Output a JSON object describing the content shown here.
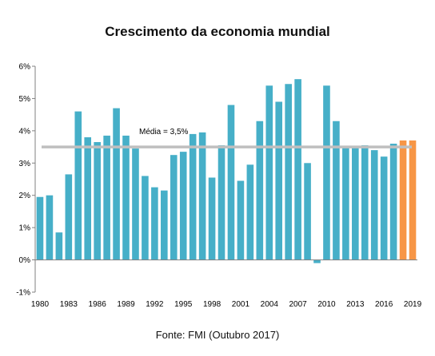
{
  "chart_data": {
    "type": "bar",
    "title": "Crescimento da economia mundial",
    "source": "Fonte: FMI (Outubro 2017)",
    "xlabel": "",
    "ylabel": "",
    "ylim": [
      -1,
      6
    ],
    "y_ticks": [
      "-1%",
      "0%",
      "1%",
      "2%",
      "3%",
      "4%",
      "5%",
      "6%"
    ],
    "x_tick_labels": [
      "1980",
      "1983",
      "1986",
      "1989",
      "1992",
      "1995",
      "1998",
      "2001",
      "2004",
      "2007",
      "2010",
      "2013",
      "2016",
      "2019"
    ],
    "categories": [
      "1980",
      "1981",
      "1982",
      "1983",
      "1984",
      "1985",
      "1986",
      "1987",
      "1988",
      "1989",
      "1990",
      "1991",
      "1992",
      "1993",
      "1994",
      "1995",
      "1996",
      "1997",
      "1998",
      "1999",
      "2000",
      "2001",
      "2002",
      "2003",
      "2004",
      "2005",
      "2006",
      "2007",
      "2008",
      "2009",
      "2010",
      "2011",
      "2012",
      "2013",
      "2014",
      "2015",
      "2016",
      "2017",
      "2018",
      "2019"
    ],
    "values": [
      1.95,
      2.0,
      0.85,
      2.65,
      4.6,
      3.8,
      3.65,
      3.85,
      4.7,
      3.85,
      3.45,
      2.6,
      2.25,
      2.15,
      3.25,
      3.35,
      3.9,
      3.95,
      2.55,
      3.55,
      4.8,
      2.45,
      2.95,
      4.3,
      5.4,
      4.9,
      5.45,
      5.6,
      3.0,
      -0.1,
      5.4,
      4.3,
      3.5,
      3.5,
      3.55,
      3.4,
      3.2,
      3.6,
      3.7,
      3.7
    ],
    "forecast_from": "2018",
    "average": {
      "label": "Média = 3,5%",
      "value": 3.5
    },
    "colors": {
      "bar": "#46AFC8",
      "forecast": "#F79646",
      "average_line": "#BFBFBF"
    },
    "grid": false,
    "legend": "none"
  }
}
